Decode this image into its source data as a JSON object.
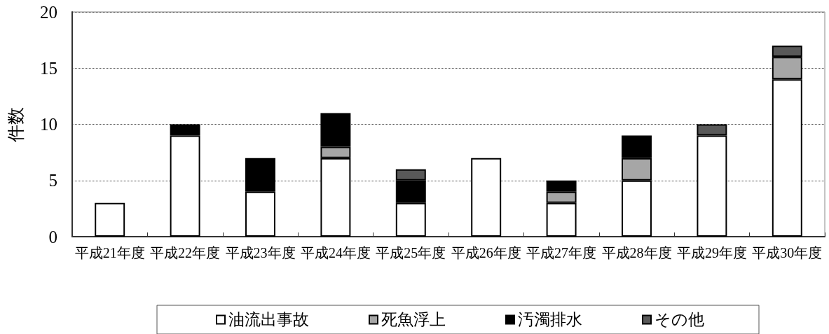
{
  "chart_data": {
    "type": "bar",
    "ylabel": "件数",
    "categories": [
      "平成21年度",
      "平成22年度",
      "平成23年度",
      "平成24年度",
      "平成25年度",
      "平成26年度",
      "平成27年度",
      "平成28年度",
      "平成29年度",
      "平成30年度"
    ],
    "series": [
      {
        "name": "油流出事故",
        "color": "#ffffff",
        "values": [
          3,
          9,
          4,
          7,
          3,
          7,
          3,
          5,
          9,
          14
        ]
      },
      {
        "name": "死魚浮上",
        "color": "#a6a6a6",
        "values": [
          null,
          null,
          null,
          1,
          null,
          null,
          1,
          2,
          null,
          2
        ]
      },
      {
        "name": "汚濁排水",
        "color": "#000000",
        "values": [
          null,
          1,
          3,
          3,
          2,
          null,
          1,
          2,
          null,
          null
        ]
      },
      {
        "name": "その他",
        "color": "#595959",
        "values": [
          null,
          null,
          null,
          null,
          1,
          null,
          null,
          null,
          1,
          1
        ]
      }
    ],
    "stacked": true,
    "ylim": [
      0,
      20
    ],
    "yticks": [
      0,
      5,
      10,
      15,
      20
    ],
    "grid": "y",
    "legend": "bottom"
  }
}
